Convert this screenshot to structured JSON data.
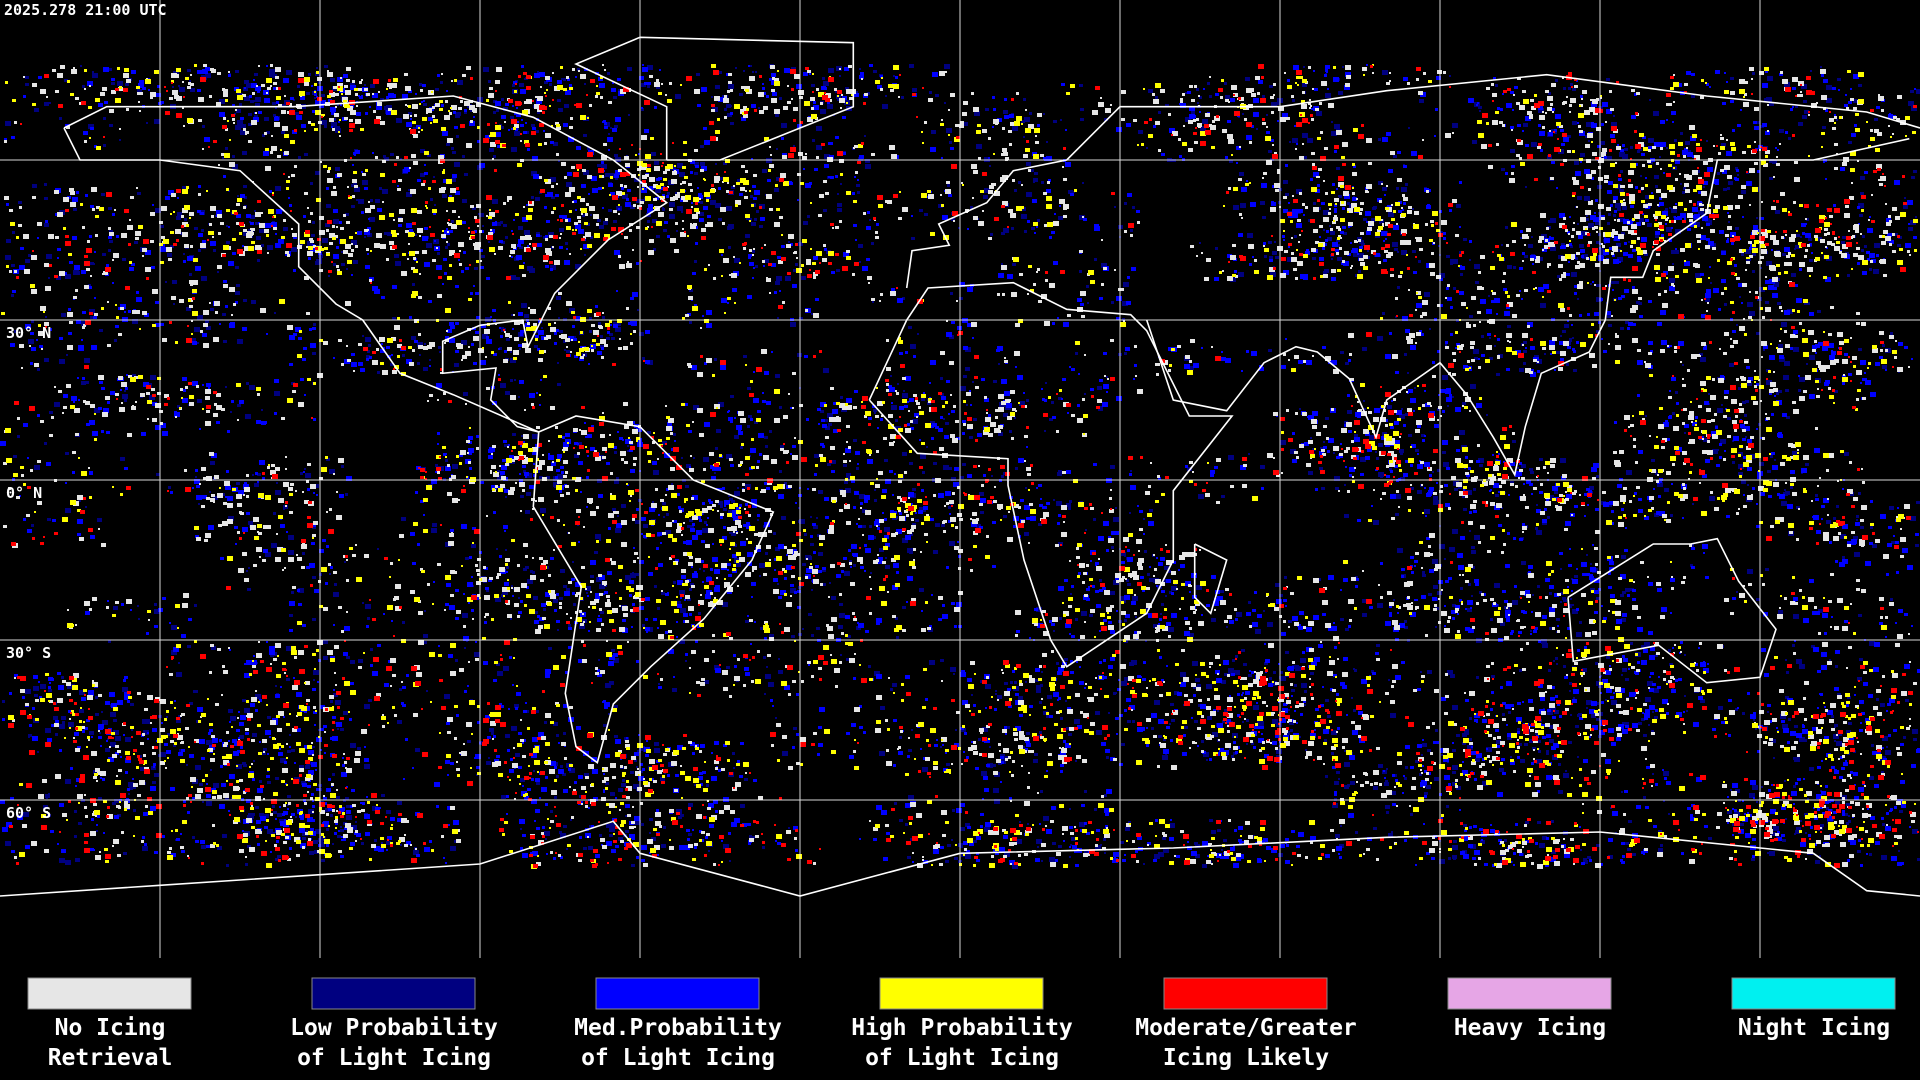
{
  "timestamp": "2025.278 21:00 UTC",
  "latitude_labels": [
    "30° N",
    "0° N",
    "30° S",
    "60° S"
  ],
  "legend": [
    {
      "label_lines": [
        "No Icing",
        "Retrieval"
      ],
      "color": "#e6e6e6"
    },
    {
      "label_lines": [
        "Low Probability",
        "of Light Icing"
      ],
      "color": "#000080"
    },
    {
      "label_lines": [
        "Med.Probability",
        "of Light Icing"
      ],
      "color": "#0000ff"
    },
    {
      "label_lines": [
        "High Probability",
        "of Light Icing"
      ],
      "color": "#ffff00"
    },
    {
      "label_lines": [
        "Moderate/Greater",
        "Icing Likely"
      ],
      "color": "#ff0000"
    },
    {
      "label_lines": [
        "Heavy Icing"
      ],
      "color": "#e6a6e6"
    },
    {
      "label_lines": [
        "Night Icing"
      ],
      "color": "#00f0f0"
    }
  ]
}
